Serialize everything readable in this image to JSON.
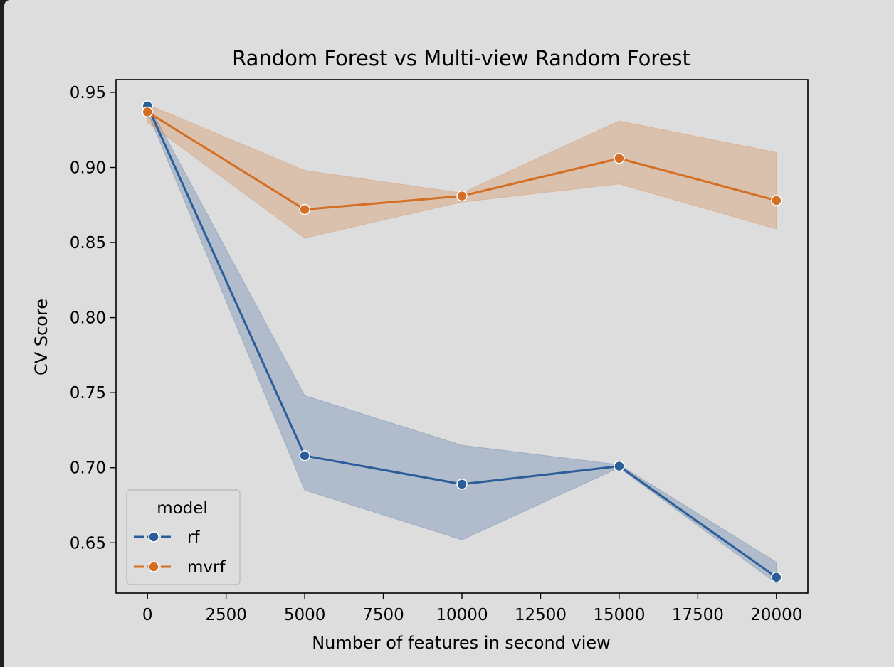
{
  "chart_data": {
    "type": "line",
    "title": "Random Forest vs Multi-view Random Forest",
    "xlabel": "Number of features in second view",
    "ylabel": "CV Score",
    "x": [
      0,
      5000,
      10000,
      15000,
      20000
    ],
    "xlim": [
      -1000,
      21000
    ],
    "ylim": [
      0.6165,
      0.9585
    ],
    "xticks": [
      0,
      2500,
      5000,
      7500,
      10000,
      12500,
      15000,
      17500,
      20000
    ],
    "xtick_labels": [
      "0",
      "2500",
      "5000",
      "7500",
      "10000",
      "12500",
      "15000",
      "17500",
      "20000"
    ],
    "yticks": [
      0.65,
      0.7,
      0.75,
      0.8,
      0.85,
      0.9,
      0.95
    ],
    "ytick_labels": [
      "0.65",
      "0.70",
      "0.75",
      "0.80",
      "0.85",
      "0.90",
      "0.95"
    ],
    "grid": false,
    "legend": {
      "title": "model",
      "placement": "lower-left"
    },
    "series": [
      {
        "name": "rf",
        "color": "#2b5d98",
        "values": [
          0.941,
          0.708,
          0.689,
          0.701,
          0.627
        ],
        "ci_lower": [
          0.937,
          0.685,
          0.652,
          0.7,
          0.623
        ],
        "ci_upper": [
          0.943,
          0.748,
          0.715,
          0.702,
          0.637
        ]
      },
      {
        "name": "mvrf",
        "color": "#d36e23",
        "values": [
          0.937,
          0.872,
          0.881,
          0.906,
          0.878
        ],
        "ci_lower": [
          0.93,
          0.853,
          0.877,
          0.889,
          0.859
        ],
        "ci_upper": [
          0.942,
          0.898,
          0.883,
          0.931,
          0.91
        ]
      }
    ]
  }
}
